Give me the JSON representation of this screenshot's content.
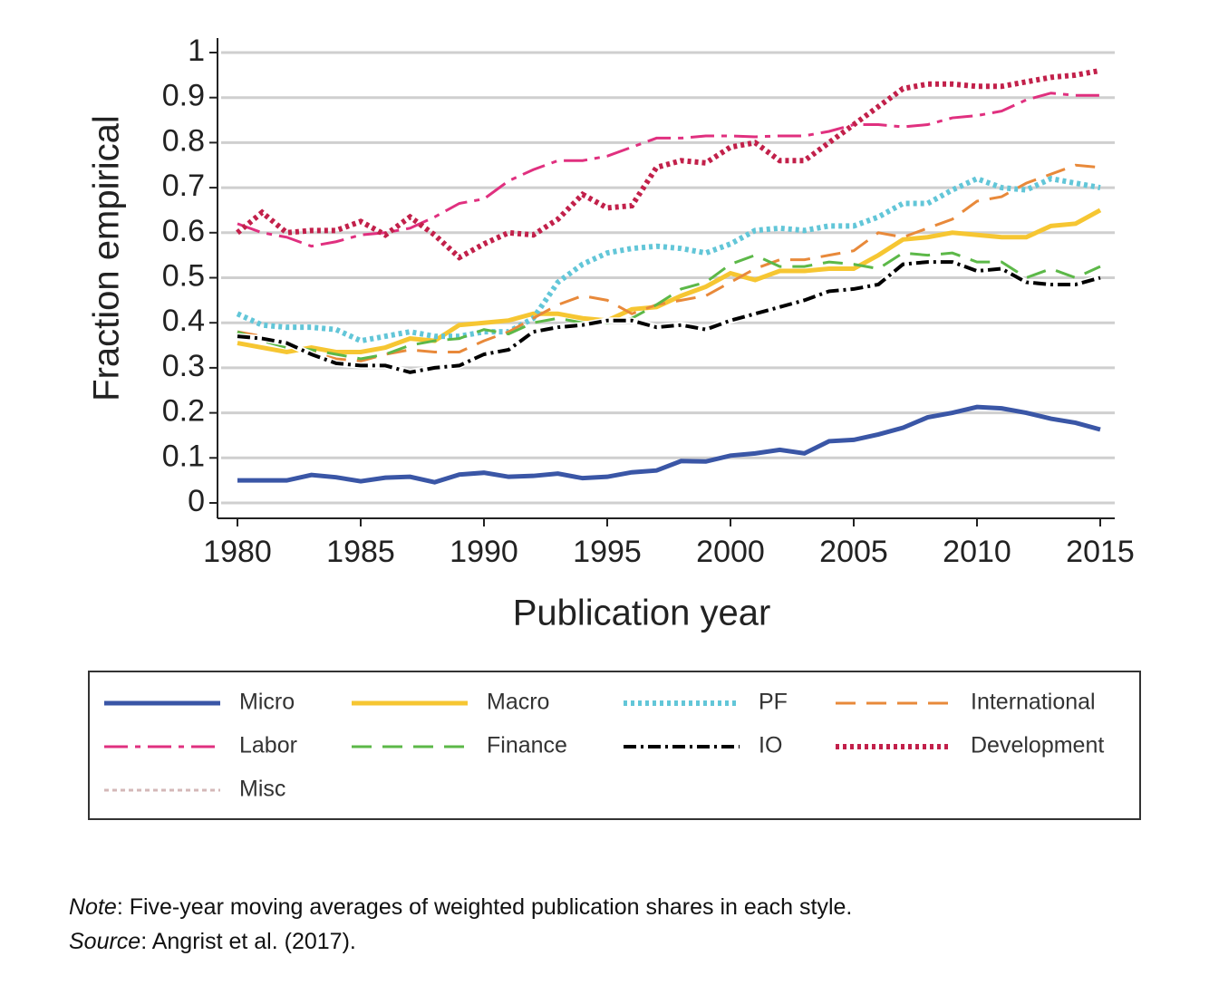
{
  "chart_data": {
    "type": "line",
    "x_label": "Publication year",
    "y_label": "Fraction empirical",
    "x": [
      1980,
      1981,
      1982,
      1983,
      1984,
      1985,
      1986,
      1987,
      1988,
      1989,
      1990,
      1991,
      1992,
      1993,
      1994,
      1995,
      1996,
      1997,
      1998,
      1999,
      2000,
      2001,
      2002,
      2003,
      2004,
      2005,
      2006,
      2007,
      2008,
      2009,
      2010,
      2011,
      2012,
      2013,
      2014,
      2015
    ],
    "xlim": [
      1980,
      2015
    ],
    "xticks": [
      1980,
      1985,
      1990,
      1995,
      2000,
      2005,
      2010,
      2015
    ],
    "ylim": [
      0,
      1
    ],
    "yticks": [
      0,
      0.1,
      0.2,
      0.3,
      0.4,
      0.5,
      0.6,
      0.7,
      0.8,
      0.9,
      1
    ],
    "grid": true,
    "legend": "bottom",
    "series": [
      {
        "name": "Micro",
        "color": "#3a56a6",
        "dash": "solid",
        "values": [
          0.05,
          0.05,
          0.05,
          0.062,
          0.057,
          0.048,
          0.056,
          0.058,
          0.046,
          0.063,
          0.067,
          0.058,
          0.06,
          0.065,
          0.055,
          0.058,
          0.068,
          0.072,
          0.093,
          0.092,
          0.105,
          0.11,
          0.118,
          0.11,
          0.137,
          0.14,
          0.152,
          0.167,
          0.19,
          0.2,
          0.213,
          0.21,
          0.2,
          0.187,
          0.178,
          0.163
        ]
      },
      {
        "name": "Macro",
        "color": "#f6c632",
        "dash": "solid",
        "values": [
          0.355,
          0.345,
          0.335,
          0.345,
          0.335,
          0.335,
          0.345,
          0.365,
          0.36,
          0.395,
          0.4,
          0.405,
          0.42,
          0.42,
          0.41,
          0.405,
          0.43,
          0.435,
          0.46,
          0.48,
          0.51,
          0.495,
          0.515,
          0.515,
          0.52,
          0.52,
          0.55,
          0.585,
          0.59,
          0.6,
          0.595,
          0.59,
          0.59,
          0.615,
          0.62,
          0.65
        ]
      },
      {
        "name": "PF",
        "color": "#62c6d8",
        "dash": "dotted",
        "values": [
          0.42,
          0.395,
          0.39,
          0.39,
          0.385,
          0.36,
          0.37,
          0.38,
          0.37,
          0.37,
          0.38,
          0.38,
          0.41,
          0.49,
          0.53,
          0.555,
          0.565,
          0.57,
          0.565,
          0.555,
          0.575,
          0.605,
          0.61,
          0.605,
          0.615,
          0.615,
          0.635,
          0.665,
          0.665,
          0.695,
          0.72,
          0.7,
          0.695,
          0.72,
          0.71,
          0.7
        ]
      },
      {
        "name": "International",
        "color": "#e8893a",
        "dash": "dashed",
        "values": [
          0.38,
          0.37,
          0.35,
          0.335,
          0.32,
          0.315,
          0.33,
          0.34,
          0.335,
          0.335,
          0.36,
          0.38,
          0.41,
          0.44,
          0.46,
          0.45,
          0.42,
          0.44,
          0.45,
          0.46,
          0.49,
          0.52,
          0.54,
          0.54,
          0.55,
          0.56,
          0.6,
          0.59,
          0.61,
          0.63,
          0.67,
          0.68,
          0.71,
          0.73,
          0.75,
          0.745
        ]
      },
      {
        "name": "Labor",
        "color": "#e0307f",
        "dash": "longdash",
        "values": [
          0.62,
          0.6,
          0.59,
          0.57,
          0.58,
          0.595,
          0.6,
          0.61,
          0.635,
          0.665,
          0.675,
          0.715,
          0.74,
          0.76,
          0.76,
          0.77,
          0.79,
          0.81,
          0.81,
          0.815,
          0.815,
          0.813,
          0.815,
          0.815,
          0.825,
          0.84,
          0.84,
          0.835,
          0.84,
          0.855,
          0.86,
          0.87,
          0.895,
          0.91,
          0.905,
          0.905
        ]
      },
      {
        "name": "Finance",
        "color": "#5cb848",
        "dash": "dashed",
        "values": [
          0.38,
          0.36,
          0.345,
          0.34,
          0.33,
          0.32,
          0.33,
          0.35,
          0.36,
          0.365,
          0.385,
          0.375,
          0.4,
          0.41,
          0.4,
          0.4,
          0.41,
          0.44,
          0.475,
          0.49,
          0.53,
          0.55,
          0.525,
          0.525,
          0.535,
          0.53,
          0.52,
          0.555,
          0.55,
          0.555,
          0.535,
          0.535,
          0.5,
          0.52,
          0.5,
          0.525
        ]
      },
      {
        "name": "IO",
        "color": "#000000",
        "dash": "dashdot",
        "values": [
          0.37,
          0.365,
          0.355,
          0.33,
          0.31,
          0.305,
          0.305,
          0.29,
          0.3,
          0.305,
          0.33,
          0.34,
          0.38,
          0.39,
          0.395,
          0.405,
          0.405,
          0.39,
          0.395,
          0.385,
          0.405,
          0.42,
          0.435,
          0.45,
          0.47,
          0.475,
          0.485,
          0.53,
          0.535,
          0.535,
          0.515,
          0.52,
          0.49,
          0.485,
          0.485,
          0.5
        ]
      },
      {
        "name": "Development",
        "color": "#c2204a",
        "dash": "dotted",
        "values": [
          0.6,
          0.645,
          0.6,
          0.605,
          0.605,
          0.625,
          0.595,
          0.635,
          0.595,
          0.545,
          0.575,
          0.6,
          0.595,
          0.63,
          0.685,
          0.655,
          0.66,
          0.745,
          0.76,
          0.755,
          0.79,
          0.8,
          0.76,
          0.76,
          0.8,
          0.84,
          0.88,
          0.92,
          0.93,
          0.93,
          0.925,
          0.925,
          0.935,
          0.945,
          0.95,
          0.96
        ]
      },
      {
        "name": "Misc",
        "color": "#d4b8b8",
        "dash": "finedot",
        "values": [
          null,
          null,
          null,
          null,
          null,
          null,
          null,
          null,
          null,
          null,
          null,
          null,
          null,
          null,
          null,
          null,
          null,
          null,
          null,
          null,
          null,
          null,
          null,
          null,
          null,
          null,
          null,
          null,
          null,
          null,
          null,
          null,
          null,
          null,
          null,
          null
        ]
      }
    ]
  },
  "notes": [
    {
      "label": "Note",
      "text": ": Five-year moving averages of weighted publication shares in each style."
    },
    {
      "label": "Source",
      "text": ": Angrist et al. (2017)."
    }
  ]
}
